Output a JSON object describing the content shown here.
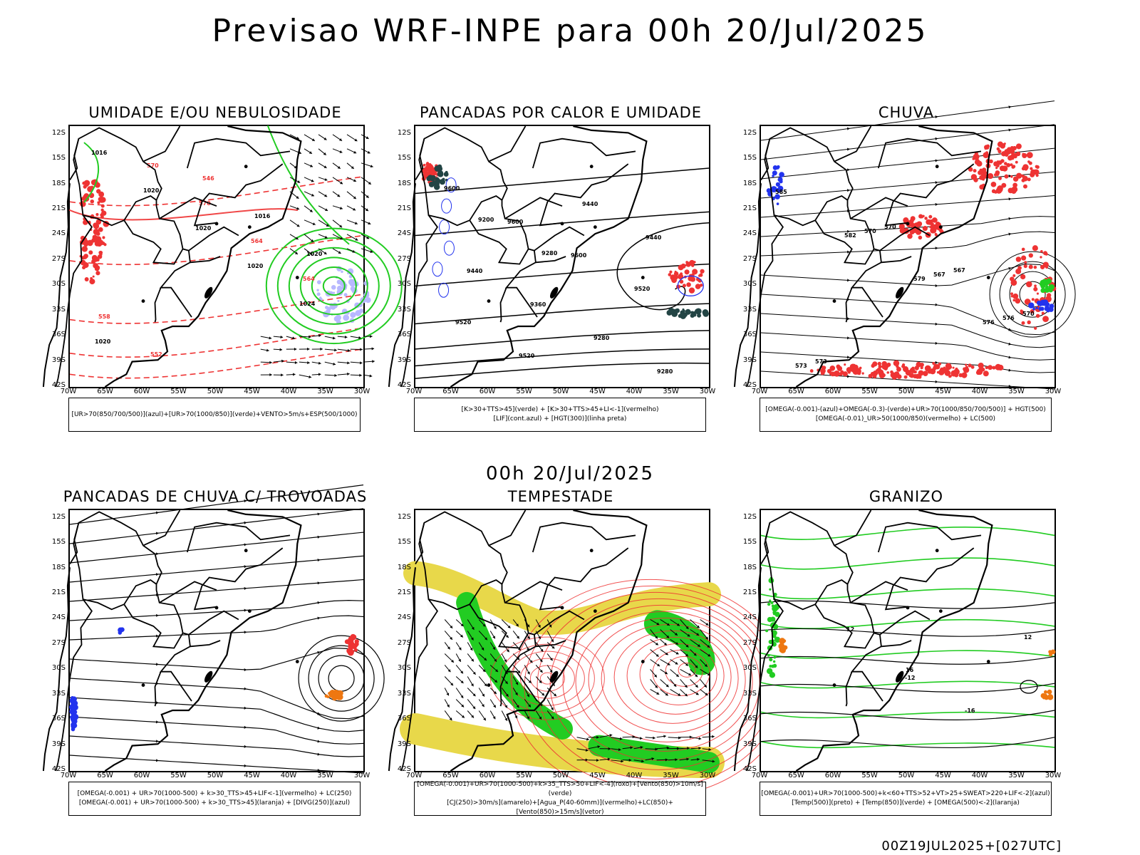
{
  "title": "Previsao WRF-INPE  para 00h 20/Jul/2025",
  "mid_title": "00h 20/Jul/2025",
  "footer": "00Z19JUL2025+[027UTC]",
  "lat_ticks": [
    "12S",
    "15S",
    "18S",
    "21S",
    "24S",
    "27S",
    "30S",
    "33S",
    "36S",
    "39S",
    "42S"
  ],
  "lon_ticks": [
    "70W",
    "65W",
    "60W",
    "55W",
    "50W",
    "45W",
    "40W",
    "35W",
    "30W"
  ],
  "panels": [
    {
      "title": "UMIDADE E/OU NEBULOSIDADE",
      "legend": [
        "[UR>70(850/700/500)](azul)+[UR>70(1000/850)](verde)+VENTO>5m/s+ESP(500/1000)"
      ],
      "labels": [
        "1016",
        "1020",
        "1020",
        "1020",
        "1024",
        "1020",
        "570",
        "570",
        "564",
        "564",
        "558",
        "552",
        "546",
        "1016",
        "1020"
      ]
    },
    {
      "title": "PANCADAS POR CALOR E UMIDADE",
      "legend": [
        "[K>30+TTS>45](verde) + [K>30+TTS>45+LI<-1](vermelho)",
        "[LIF](cont.azul) + [HGT(300)](linha preta)"
      ],
      "labels": [
        "9600",
        "9600",
        "9600",
        "9520",
        "9520",
        "9520",
        "9440",
        "9440",
        "9440",
        "9360",
        "9280",
        "9280",
        "9200",
        "9280"
      ]
    },
    {
      "title": "CHUVA",
      "legend": [
        "[OMEGA(-0.001)-(azul)+OMEGA(-0.3)-(verde)+UR>70(1000/850/700/500)] + HGT(500)",
        "[OMEGA(-0.01)_UR>50(1000/850)(vermelho) + LC(500)"
      ],
      "labels": [
        "585",
        "582",
        "579",
        "576",
        "573",
        "570",
        "567",
        "576",
        "573",
        "570",
        "567",
        "570"
      ]
    },
    {
      "title": "PANCADAS DE CHUVA C/ TROVOADAS",
      "legend": [
        "[OMEGA(-0.001) + UR>70(1000-500) + k>30_TTS>45+LIF<-1](vermelho) + LC(250)",
        "[OMEGA(-0.001) + UR>70(1000-500) + k>30_TTS>45](laranja) + [DIVG(250)](azul)"
      ],
      "labels": []
    },
    {
      "title": "TEMPESTADE",
      "legend": [
        "[OMEGA(-0.001)+UR>70(1000-500)+k>35_TTS>50+LIF<-4](roxo)+[Vento(850)>10m/s](verde)",
        "[CJ(250)>30m/s](amarelo)+[Agua_P(40-60mm)](vermelho)+LC(850)+[Vento(850)>15m/s](vetor)"
      ],
      "labels": []
    },
    {
      "title": "GRANIZO",
      "legend": [
        "[OMEGA(-0.001)+UR>70(1000-500)+k<60+TTS>52+VT>25+SWEAT>220+LIF<-2](azul)",
        "[Temp(500)](preto) + [Temp(850)](verde) + [OMEGA(500)<-2](laranja)"
      ],
      "labels": [
        "12",
        "16",
        "-16",
        "12",
        "-12"
      ]
    }
  ],
  "colors": {
    "green": "#22cc22",
    "red": "#ee3333",
    "blue": "#2233ee",
    "yellow": "#e8d84a",
    "lavender": "#b8b8ff",
    "orange": "#ee7711"
  }
}
